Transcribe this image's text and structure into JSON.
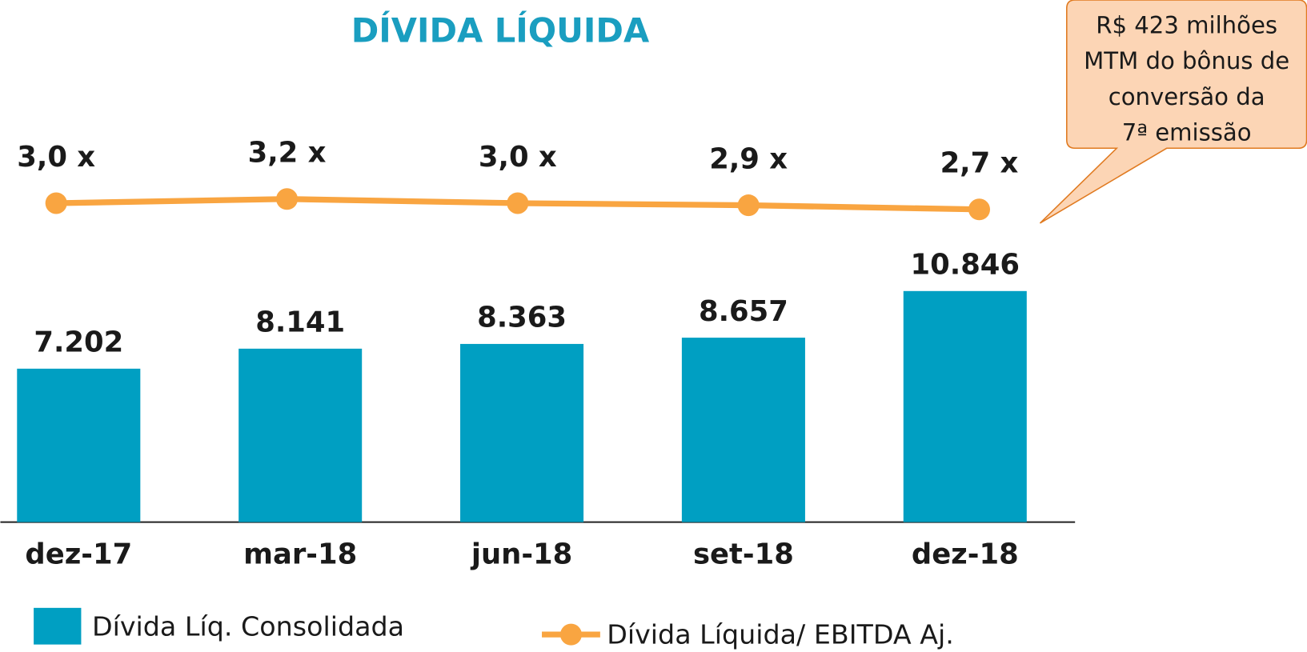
{
  "chart_data": {
    "type": "bar",
    "title": "DÍVIDA LÍQUIDA",
    "categories": [
      "dez-17",
      "mar-18",
      "jun-18",
      "set-18",
      "dez-18"
    ],
    "series": [
      {
        "name": "Dívida Líq. Consolidada",
        "type": "bar",
        "color": "#009fc2",
        "values": [
          7202,
          8141,
          8363,
          8657,
          10846
        ],
        "value_labels": [
          "7.202",
          "8.141",
          "8.363",
          "8.657",
          "10.846"
        ]
      },
      {
        "name": "Dívida Líquida/ EBITDA Aj.",
        "type": "line",
        "axis": "y2",
        "color": "#f9a541",
        "values": [
          3.0,
          3.2,
          3.0,
          2.9,
          2.7
        ],
        "value_labels": [
          "3,0 x",
          "3,2 x",
          "3,0 x",
          "2,9 x",
          "2,7 x"
        ]
      }
    ],
    "ylim": [
      0,
      12000
    ],
    "y2lim": [
      0,
      12
    ],
    "annotation": [
      "R$ 423 milhões",
      "MTM do bônus de",
      "conversão da",
      "7ª emissão"
    ]
  }
}
